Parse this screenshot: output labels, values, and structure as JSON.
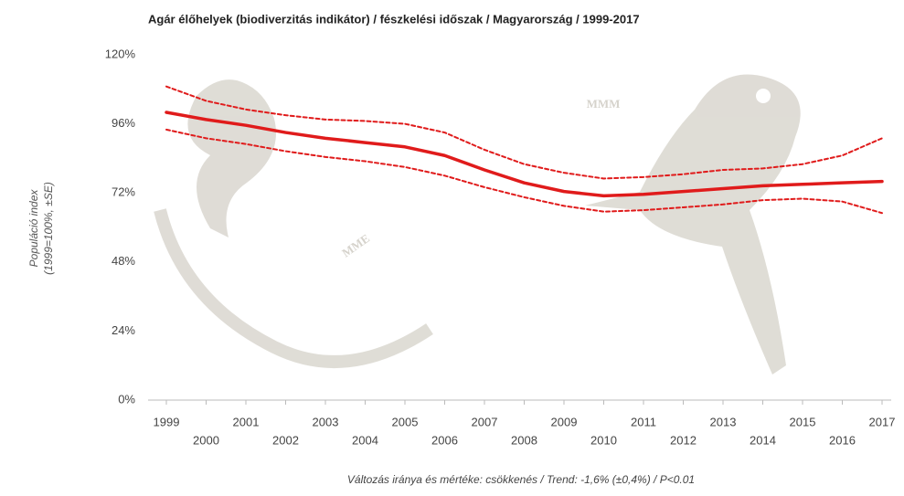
{
  "chart_data": {
    "type": "line",
    "title": "Agár élőhelyek (biodiverzitás indikátor) / fészkelési időszak / Magyarország / 1999-2017",
    "y_label": [
      "Populáció index",
      "(1999=100%, ±SE)"
    ],
    "footer": "Változás iránya és mértéke: csökkenés / Trend: -1,6% (±0,4%) / P<0.01",
    "watermark": [
      "MMM",
      "MME"
    ],
    "x": [
      1999,
      2000,
      2001,
      2002,
      2003,
      2004,
      2005,
      2006,
      2007,
      2008,
      2009,
      2010,
      2011,
      2012,
      2013,
      2014,
      2015,
      2016,
      2017
    ],
    "xlim": [
      1999,
      2017
    ],
    "ylim": [
      0,
      120
    ],
    "yticks": [
      {
        "value": 0,
        "label": "0%"
      },
      {
        "value": 24,
        "label": "24%"
      },
      {
        "value": 48,
        "label": "48%"
      },
      {
        "value": 72,
        "label": "72%"
      },
      {
        "value": 96,
        "label": "96%"
      },
      {
        "value": 120,
        "label": "120%"
      }
    ],
    "grid": false,
    "series": [
      {
        "color": "#e01b1b",
        "style": "solid",
        "values": [
          100,
          97.5,
          95.5,
          93,
          91,
          89.5,
          88,
          85,
          80,
          75.5,
          72.5,
          71,
          71.5,
          72.5,
          73.5,
          74.5,
          75,
          75.5,
          76
        ]
      },
      {
        "color": "#e01b1b",
        "style": "dotted",
        "values": [
          109,
          104,
          101,
          99,
          97.5,
          97,
          96,
          93,
          87,
          82,
          79,
          77,
          77.5,
          78.5,
          80,
          80.5,
          82,
          85,
          91
        ]
      },
      {
        "color": "#e01b1b",
        "style": "dotted",
        "values": [
          94,
          91,
          89,
          86.5,
          84.5,
          83,
          81,
          78,
          74,
          70.5,
          67.5,
          65.5,
          66,
          67,
          68,
          69.5,
          70,
          69,
          65
        ]
      }
    ]
  }
}
